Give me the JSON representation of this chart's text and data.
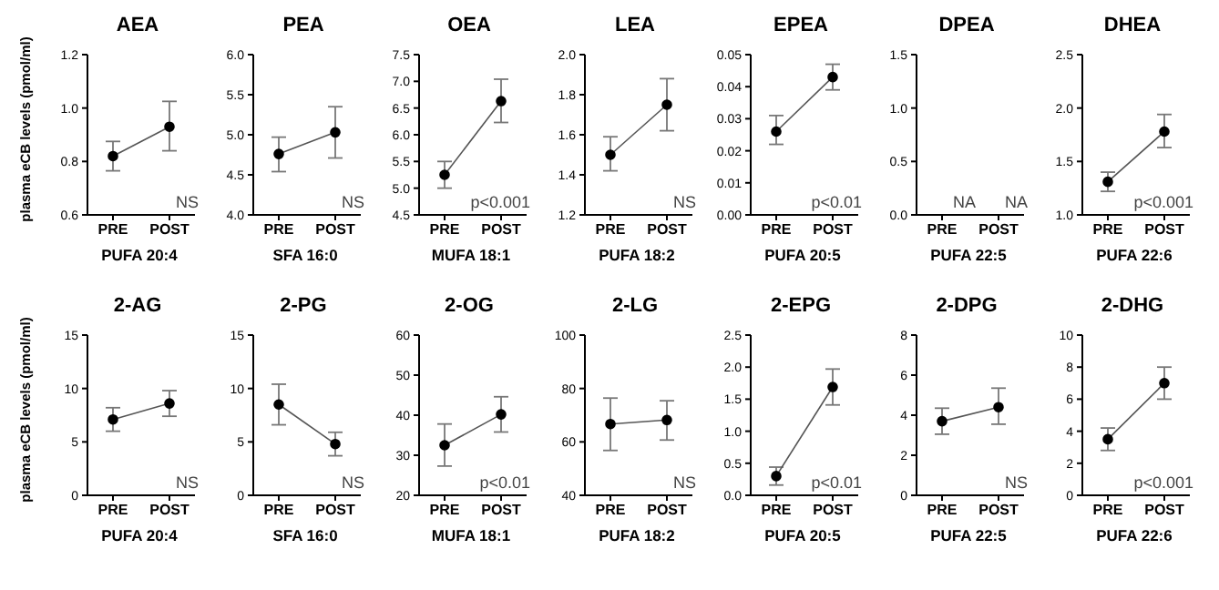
{
  "chart_data": [
    {
      "type": "line",
      "title": "AEA",
      "ylabel": "plasma eCB levels (pmol/ml)",
      "xlabel": "PUFA 20:4",
      "categories": [
        "PRE",
        "POST"
      ],
      "values": [
        0.82,
        0.93
      ],
      "errors": [
        [
          0.765,
          0.875
        ],
        [
          0.84,
          1.025
        ]
      ],
      "color": "#000000",
      "marker": "circle",
      "ylim": [
        0.6,
        1.2
      ],
      "yticks": [
        0.6,
        0.8,
        {
          "value": 1,
          "label": "1.0"
        },
        1.2
      ],
      "annotations": [
        "NS"
      ]
    },
    {
      "type": "line",
      "title": "PEA",
      "xlabel": "SFA 16:0",
      "categories": [
        "PRE",
        "POST"
      ],
      "values": [
        4.76,
        5.03
      ],
      "errors": [
        [
          4.54,
          4.97
        ],
        [
          4.71,
          5.35
        ]
      ],
      "color": "#000000",
      "marker": "circle",
      "ylim": [
        4,
        6
      ],
      "yticks": [
        {
          "value": 4,
          "label": "4.0"
        },
        4.5,
        {
          "value": 5,
          "label": "5.0"
        },
        5.5,
        {
          "value": 6,
          "label": "6.0"
        }
      ],
      "annotations": [
        "NS"
      ]
    },
    {
      "type": "line",
      "title": "OEA",
      "xlabel": "MUFA 18:1",
      "categories": [
        "PRE",
        "POST"
      ],
      "values": [
        5.25,
        6.63
      ],
      "errors": [
        [
          5.0,
          5.5
        ],
        [
          6.23,
          7.04
        ]
      ],
      "color": "#000000",
      "marker": "circle",
      "ylim": [
        4.5,
        7.5
      ],
      "yticks": [
        4.5,
        {
          "value": 5,
          "label": "5.0"
        },
        5.5,
        {
          "value": 6,
          "label": "6.0"
        },
        6.5,
        {
          "value": 7,
          "label": "7.0"
        },
        7.5
      ],
      "annotations": [
        "p<0.001"
      ]
    },
    {
      "type": "line",
      "title": "LEA",
      "xlabel": "PUFA 18:2",
      "categories": [
        "PRE",
        "POST"
      ],
      "values": [
        1.5,
        1.75
      ],
      "errors": [
        [
          1.42,
          1.59
        ],
        [
          1.62,
          1.88
        ]
      ],
      "color": "#000000",
      "marker": "circle",
      "ylim": [
        1.2,
        2
      ],
      "yticks": [
        1.2,
        1.4,
        1.6,
        1.8,
        {
          "value": 2,
          "label": "2.0"
        }
      ],
      "annotations": [
        "NS"
      ]
    },
    {
      "type": "line",
      "title": "EPEA",
      "xlabel": "PUFA 20:5",
      "categories": [
        "PRE",
        "POST"
      ],
      "values": [
        0.026,
        0.043
      ],
      "errors": [
        [
          0.022,
          0.031
        ],
        [
          0.039,
          0.047
        ]
      ],
      "color": "#000000",
      "marker": "circle",
      "ylim": [
        0,
        0.05
      ],
      "yticks": [
        {
          "value": 0,
          "label": "0.00"
        },
        {
          "value": 0.01,
          "label": "0.01"
        },
        {
          "value": 0.02,
          "label": "0.02"
        },
        {
          "value": 0.03,
          "label": "0.03"
        },
        {
          "value": 0.04,
          "label": "0.04"
        },
        {
          "value": 0.05,
          "label": "0.05"
        }
      ],
      "annotations": [
        "p<0.01"
      ]
    },
    {
      "type": "line",
      "title": "DPEA",
      "xlabel": "PUFA 22:5",
      "categories": [
        "PRE",
        "POST"
      ],
      "values": [
        null,
        null
      ],
      "color": "#000000",
      "marker": "circle",
      "ylim": [
        0,
        1.5
      ],
      "yticks": [
        {
          "value": 0,
          "label": "0.0"
        },
        0.5,
        {
          "value": 1,
          "label": "1.0"
        },
        1.5
      ],
      "annotations": [
        "NA",
        "NA"
      ]
    },
    {
      "type": "line",
      "title": "DHEA",
      "xlabel": "PUFA 22:6",
      "categories": [
        "PRE",
        "POST"
      ],
      "values": [
        1.31,
        1.78
      ],
      "errors": [
        [
          1.22,
          1.4
        ],
        [
          1.63,
          1.94
        ]
      ],
      "color": "#000000",
      "marker": "circle",
      "ylim": [
        1,
        2.5
      ],
      "yticks": [
        {
          "value": 1,
          "label": "1.0"
        },
        1.5,
        {
          "value": 2,
          "label": "2.0"
        },
        2.5
      ],
      "annotations": [
        "p<0.001"
      ]
    },
    {
      "type": "line",
      "title": "2-AG",
      "ylabel": "plasma eCB levels (pmol/ml)",
      "xlabel": "PUFA 20:4",
      "categories": [
        "PRE",
        "POST"
      ],
      "values": [
        7.1,
        8.6
      ],
      "errors": [
        [
          6.0,
          8.2
        ],
        [
          7.4,
          9.8
        ]
      ],
      "color": "#000000",
      "marker": "circle",
      "ylim": [
        0,
        15
      ],
      "yticks": [
        0,
        5,
        10,
        15
      ],
      "annotations": [
        "NS"
      ]
    },
    {
      "type": "line",
      "title": "2-PG",
      "xlabel": "SFA 16:0",
      "categories": [
        "PRE",
        "POST"
      ],
      "values": [
        8.5,
        4.8
      ],
      "errors": [
        [
          6.6,
          10.4
        ],
        [
          3.7,
          5.9
        ]
      ],
      "color": "#000000",
      "marker": "circle",
      "ylim": [
        0,
        15
      ],
      "yticks": [
        0,
        5,
        10,
        15
      ],
      "annotations": [
        "NS"
      ]
    },
    {
      "type": "line",
      "title": "2-OG",
      "xlabel": "MUFA 18:1",
      "categories": [
        "PRE",
        "POST"
      ],
      "values": [
        32.5,
        40.2
      ],
      "errors": [
        [
          27.3,
          37.8
        ],
        [
          35.8,
          44.6
        ]
      ],
      "color": "#000000",
      "marker": "circle",
      "ylim": [
        20,
        60
      ],
      "yticks": [
        20,
        30,
        40,
        50,
        60
      ],
      "annotations": [
        "p<0.01"
      ]
    },
    {
      "type": "line",
      "title": "2-LG",
      "xlabel": "PUFA 18:2",
      "categories": [
        "PRE",
        "POST"
      ],
      "values": [
        66.7,
        68.2
      ],
      "errors": [
        [
          56.8,
          76.4
        ],
        [
          60.7,
          75.4
        ]
      ],
      "color": "#000000",
      "marker": "circle",
      "ylim": [
        40,
        100
      ],
      "yticks": [
        40,
        60,
        80,
        100
      ],
      "annotations": [
        "NS"
      ]
    },
    {
      "type": "line",
      "title": "2-EPG",
      "xlabel": "PUFA 20:5",
      "categories": [
        "PRE",
        "POST"
      ],
      "values": [
        0.3,
        1.69
      ],
      "errors": [
        [
          0.16,
          0.44
        ],
        [
          1.41,
          1.97
        ]
      ],
      "color": "#000000",
      "marker": "circle",
      "ylim": [
        0,
        2.5
      ],
      "yticks": [
        {
          "value": 0,
          "label": "0.0"
        },
        0.5,
        {
          "value": 1,
          "label": "1.0"
        },
        1.5,
        {
          "value": 2,
          "label": "2.0"
        },
        2.5
      ],
      "annotations": [
        "p<0.01"
      ]
    },
    {
      "type": "line",
      "title": "2-DPG",
      "xlabel": "PUFA 22:5",
      "categories": [
        "PRE",
        "POST"
      ],
      "values": [
        3.7,
        4.4
      ],
      "errors": [
        [
          3.05,
          4.35
        ],
        [
          3.55,
          5.35
        ]
      ],
      "color": "#000000",
      "marker": "circle",
      "ylim": [
        0,
        8
      ],
      "yticks": [
        0,
        2,
        4,
        6,
        8
      ],
      "annotations": [
        "NS"
      ]
    },
    {
      "type": "line",
      "title": "2-DHG",
      "xlabel": "PUFA 22:6",
      "categories": [
        "PRE",
        "POST"
      ],
      "values": [
        3.5,
        7.0
      ],
      "errors": [
        [
          2.8,
          4.2
        ],
        [
          6.0,
          8.0
        ]
      ],
      "color": "#000000",
      "marker": "circle",
      "ylim": [
        0,
        10
      ],
      "yticks": [
        0,
        2,
        4,
        6,
        8,
        10
      ],
      "annotations": [
        "p<0.001"
      ]
    }
  ]
}
